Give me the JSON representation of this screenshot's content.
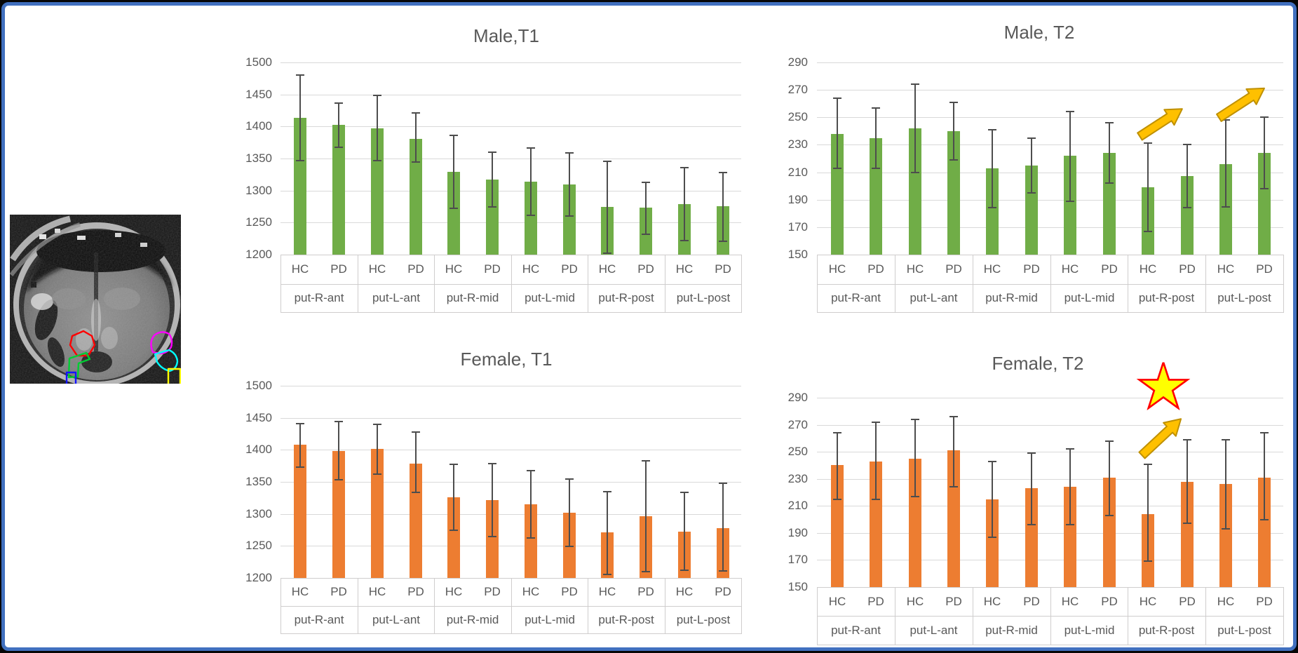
{
  "window": {
    "background": "#FFFFFF",
    "border_color": "#4170BF"
  },
  "colors": {
    "male_bar": "#70AD47",
    "female_bar": "#ED7D31",
    "error_bar": "#4D4D4D",
    "gridline": "#D9D9D9",
    "axis_text": "#595959",
    "arrow_fill": "#FFC000",
    "arrow_stroke": "#BF9000",
    "star_fill": "#FFFF00",
    "star_stroke": "#FF0000"
  },
  "mri_panel": {
    "description": "axial brain MRI slice with putamen ROI outlines",
    "roi_colors": [
      "#FF0000",
      "#00CC33",
      "#1414FF",
      "#FF00FF",
      "#00FFFF",
      "#FFFF00"
    ]
  },
  "chart_data": [
    {
      "type": "bar",
      "title": "Male,T1",
      "bar_color": "#70AD47",
      "ylim": [
        1200,
        1500
      ],
      "ytick_step": 50,
      "yticks": [
        "1500",
        "1450",
        "1400",
        "1350",
        "1300",
        "1250",
        "1200"
      ],
      "categories": [
        "put-R-ant",
        "put-L-ant",
        "put-R-mid",
        "put-L-mid",
        "put-R-post",
        "put-L-post"
      ],
      "series": [
        {
          "name": "HC",
          "values": [
            1413,
            1397,
            1329,
            1314,
            1275,
            1279
          ],
          "err_low": [
            1347,
            1347,
            1272,
            1261,
            1202,
            1222
          ],
          "err_high": [
            1480,
            1448,
            1386,
            1366,
            1346,
            1336
          ]
        },
        {
          "name": "PD",
          "values": [
            1403,
            1381,
            1317,
            1310,
            1273,
            1276
          ],
          "err_low": [
            1368,
            1344,
            1275,
            1260,
            1232,
            1221
          ],
          "err_high": [
            1437,
            1421,
            1360,
            1359,
            1313,
            1328
          ]
        }
      ],
      "annotations": []
    },
    {
      "type": "bar",
      "title": "Male, T2",
      "bar_color": "#70AD47",
      "ylim": [
        150,
        290
      ],
      "ytick_step": 20,
      "yticks": [
        "290",
        "270",
        "250",
        "230",
        "210",
        "190",
        "170",
        "150"
      ],
      "categories": [
        "put-R-ant",
        "put-L-ant",
        "put-R-mid",
        "put-L-mid",
        "put-R-post",
        "put-L-post"
      ],
      "series": [
        {
          "name": "HC",
          "values": [
            238,
            242,
            213,
            222,
            199,
            216
          ],
          "err_low": [
            213,
            210,
            184,
            189,
            167,
            185
          ],
          "err_high": [
            264,
            274,
            241,
            254,
            231,
            248
          ]
        },
        {
          "name": "PD",
          "values": [
            235,
            240,
            215,
            224,
            207,
            224
          ],
          "err_low": [
            213,
            219,
            195,
            202,
            184,
            198
          ],
          "err_high": [
            257,
            261,
            235,
            246,
            230,
            250
          ]
        }
      ],
      "annotations": [
        {
          "type": "arrow-up-right",
          "at": "put-R-post"
        },
        {
          "type": "arrow-up-right",
          "at": "put-L-post"
        }
      ]
    },
    {
      "type": "bar",
      "title": "Female, T1",
      "bar_color": "#ED7D31",
      "ylim": [
        1200,
        1500
      ],
      "ytick_step": 50,
      "yticks": [
        "1500",
        "1450",
        "1400",
        "1350",
        "1300",
        "1250",
        "1200"
      ],
      "categories": [
        "put-R-ant",
        "put-L-ant",
        "put-R-mid",
        "put-L-mid",
        "put-R-post",
        "put-L-post"
      ],
      "series": [
        {
          "name": "HC",
          "values": [
            1408,
            1401,
            1326,
            1315,
            1271,
            1272
          ],
          "err_low": [
            1373,
            1362,
            1274,
            1262,
            1206,
            1212
          ],
          "err_high": [
            1441,
            1440,
            1377,
            1367,
            1335,
            1334
          ]
        },
        {
          "name": "PD",
          "values": [
            1398,
            1379,
            1322,
            1302,
            1296,
            1278
          ],
          "err_low": [
            1353,
            1334,
            1265,
            1249,
            1210,
            1211
          ],
          "err_high": [
            1444,
            1428,
            1378,
            1354,
            1383,
            1348
          ]
        }
      ],
      "annotations": []
    },
    {
      "type": "bar",
      "title": "Female, T2",
      "bar_color": "#ED7D31",
      "ylim": [
        150,
        290
      ],
      "ytick_step": 20,
      "yticks": [
        "290",
        "270",
        "250",
        "230",
        "210",
        "190",
        "170",
        "150"
      ],
      "categories": [
        "put-R-ant",
        "put-L-ant",
        "put-R-mid",
        "put-L-mid",
        "put-R-post",
        "put-L-post"
      ],
      "series": [
        {
          "name": "HC",
          "values": [
            240,
            245,
            215,
            224,
            204,
            226
          ],
          "err_low": [
            215,
            217,
            187,
            196,
            169,
            193
          ],
          "err_high": [
            264,
            274,
            243,
            252,
            241,
            259
          ]
        },
        {
          "name": "PD",
          "values": [
            243,
            251,
            223,
            231,
            228,
            231
          ],
          "err_low": [
            215,
            224,
            196,
            203,
            197,
            200
          ],
          "err_high": [
            272,
            276,
            249,
            258,
            259,
            264
          ]
        }
      ],
      "annotations": [
        {
          "type": "star",
          "at": "put-R-post"
        },
        {
          "type": "arrow-up-right",
          "at": "put-R-post"
        }
      ]
    }
  ]
}
